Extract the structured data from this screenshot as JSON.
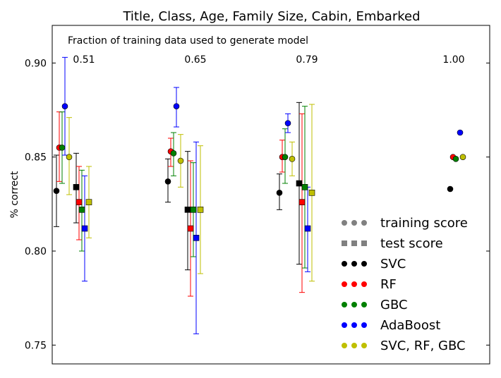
{
  "chart_data": {
    "type": "scatter",
    "title": "Title, Class, Age, Family Size, Cabin, Embarked",
    "subtitle": "Fraction of training data used to generate model",
    "xlabel": "",
    "ylabel": "% correct",
    "ylim": [
      0.74,
      0.92
    ],
    "y_ticks": [
      "0.75",
      "0.80",
      "0.85",
      "0.90"
    ],
    "y_tick_values": [
      0.75,
      0.8,
      0.85,
      0.9
    ],
    "grid": false,
    "legend_position": "lower-right",
    "groups": [
      "0.51",
      "0.65",
      "0.79",
      "1.00"
    ],
    "markers": {
      "training": "circle",
      "test": "square"
    },
    "series": [
      {
        "name": "SVC",
        "color": "#000000",
        "training": [
          {
            "y": 0.832,
            "err": [
              0.813,
              0.851
            ]
          },
          {
            "y": 0.837,
            "err": [
              0.826,
              0.849
            ]
          },
          {
            "y": 0.831,
            "err": [
              0.822,
              0.841
            ]
          },
          {
            "y": 0.833,
            "err": null
          }
        ],
        "test": [
          {
            "y": 0.834,
            "err": [
              0.815,
              0.852
            ]
          },
          {
            "y": 0.822,
            "err": [
              0.79,
              0.853
            ]
          },
          {
            "y": 0.836,
            "err": [
              0.793,
              0.879
            ]
          },
          null
        ]
      },
      {
        "name": "RF",
        "color": "#ff0000",
        "training": [
          {
            "y": 0.855,
            "err": [
              0.837,
              0.874
            ]
          },
          {
            "y": 0.853,
            "err": [
              0.845,
              0.86
            ]
          },
          {
            "y": 0.85,
            "err": [
              0.842,
              0.859
            ]
          },
          {
            "y": 0.85,
            "err": null
          }
        ],
        "test": [
          {
            "y": 0.826,
            "err": [
              0.806,
              0.845
            ]
          },
          {
            "y": 0.812,
            "err": [
              0.776,
              0.848
            ]
          },
          {
            "y": 0.826,
            "err": [
              0.778,
              0.873
            ]
          },
          null
        ]
      },
      {
        "name": "GBC",
        "color": "#008000",
        "training": [
          {
            "y": 0.855,
            "err": [
              0.836,
              0.874
            ]
          },
          {
            "y": 0.852,
            "err": [
              0.84,
              0.863
            ]
          },
          {
            "y": 0.85,
            "err": [
              0.836,
              0.865
            ]
          },
          {
            "y": 0.849,
            "err": null
          }
        ],
        "test": [
          {
            "y": 0.822,
            "err": [
              0.8,
              0.843
            ]
          },
          {
            "y": 0.822,
            "err": [
              0.797,
              0.847
            ]
          },
          {
            "y": 0.834,
            "err": [
              0.791,
              0.877
            ]
          },
          null
        ]
      },
      {
        "name": "AdaBoost",
        "color": "#0000ff",
        "training": [
          {
            "y": 0.877,
            "err": [
              0.851,
              0.903
            ]
          },
          {
            "y": 0.877,
            "err": [
              0.866,
              0.887
            ]
          },
          {
            "y": 0.868,
            "err": [
              0.863,
              0.873
            ]
          },
          {
            "y": 0.863,
            "err": null
          }
        ],
        "test": [
          {
            "y": 0.812,
            "err": [
              0.784,
              0.84
            ]
          },
          {
            "y": 0.807,
            "err": [
              0.756,
              0.858
            ]
          },
          {
            "y": 0.812,
            "err": [
              0.789,
              0.834
            ]
          },
          null
        ]
      },
      {
        "name": "SVC, RF, GBC",
        "color": "#bfbf00",
        "training": [
          {
            "y": 0.85,
            "err": [
              0.83,
              0.871
            ]
          },
          {
            "y": 0.848,
            "err": [
              0.834,
              0.862
            ]
          },
          {
            "y": 0.849,
            "err": [
              0.84,
              0.858
            ]
          },
          {
            "y": 0.85,
            "err": null
          }
        ],
        "test": [
          {
            "y": 0.826,
            "err": [
              0.807,
              0.845
            ]
          },
          {
            "y": 0.822,
            "err": [
              0.788,
              0.856
            ]
          },
          {
            "y": 0.831,
            "err": [
              0.784,
              0.878
            ]
          },
          null
        ]
      }
    ],
    "legend": [
      {
        "label": "training score",
        "color": "#808080",
        "marker": "circle"
      },
      {
        "label": "test score",
        "color": "#808080",
        "marker": "square"
      },
      {
        "label": "SVC",
        "color": "#000000",
        "marker": "circle"
      },
      {
        "label": "RF",
        "color": "#ff0000",
        "marker": "circle"
      },
      {
        "label": "GBC",
        "color": "#008000",
        "marker": "circle"
      },
      {
        "label": "AdaBoost",
        "color": "#0000ff",
        "marker": "circle"
      },
      {
        "label": "SVC, RF, GBC",
        "color": "#bfbf00",
        "marker": "circle"
      }
    ]
  }
}
